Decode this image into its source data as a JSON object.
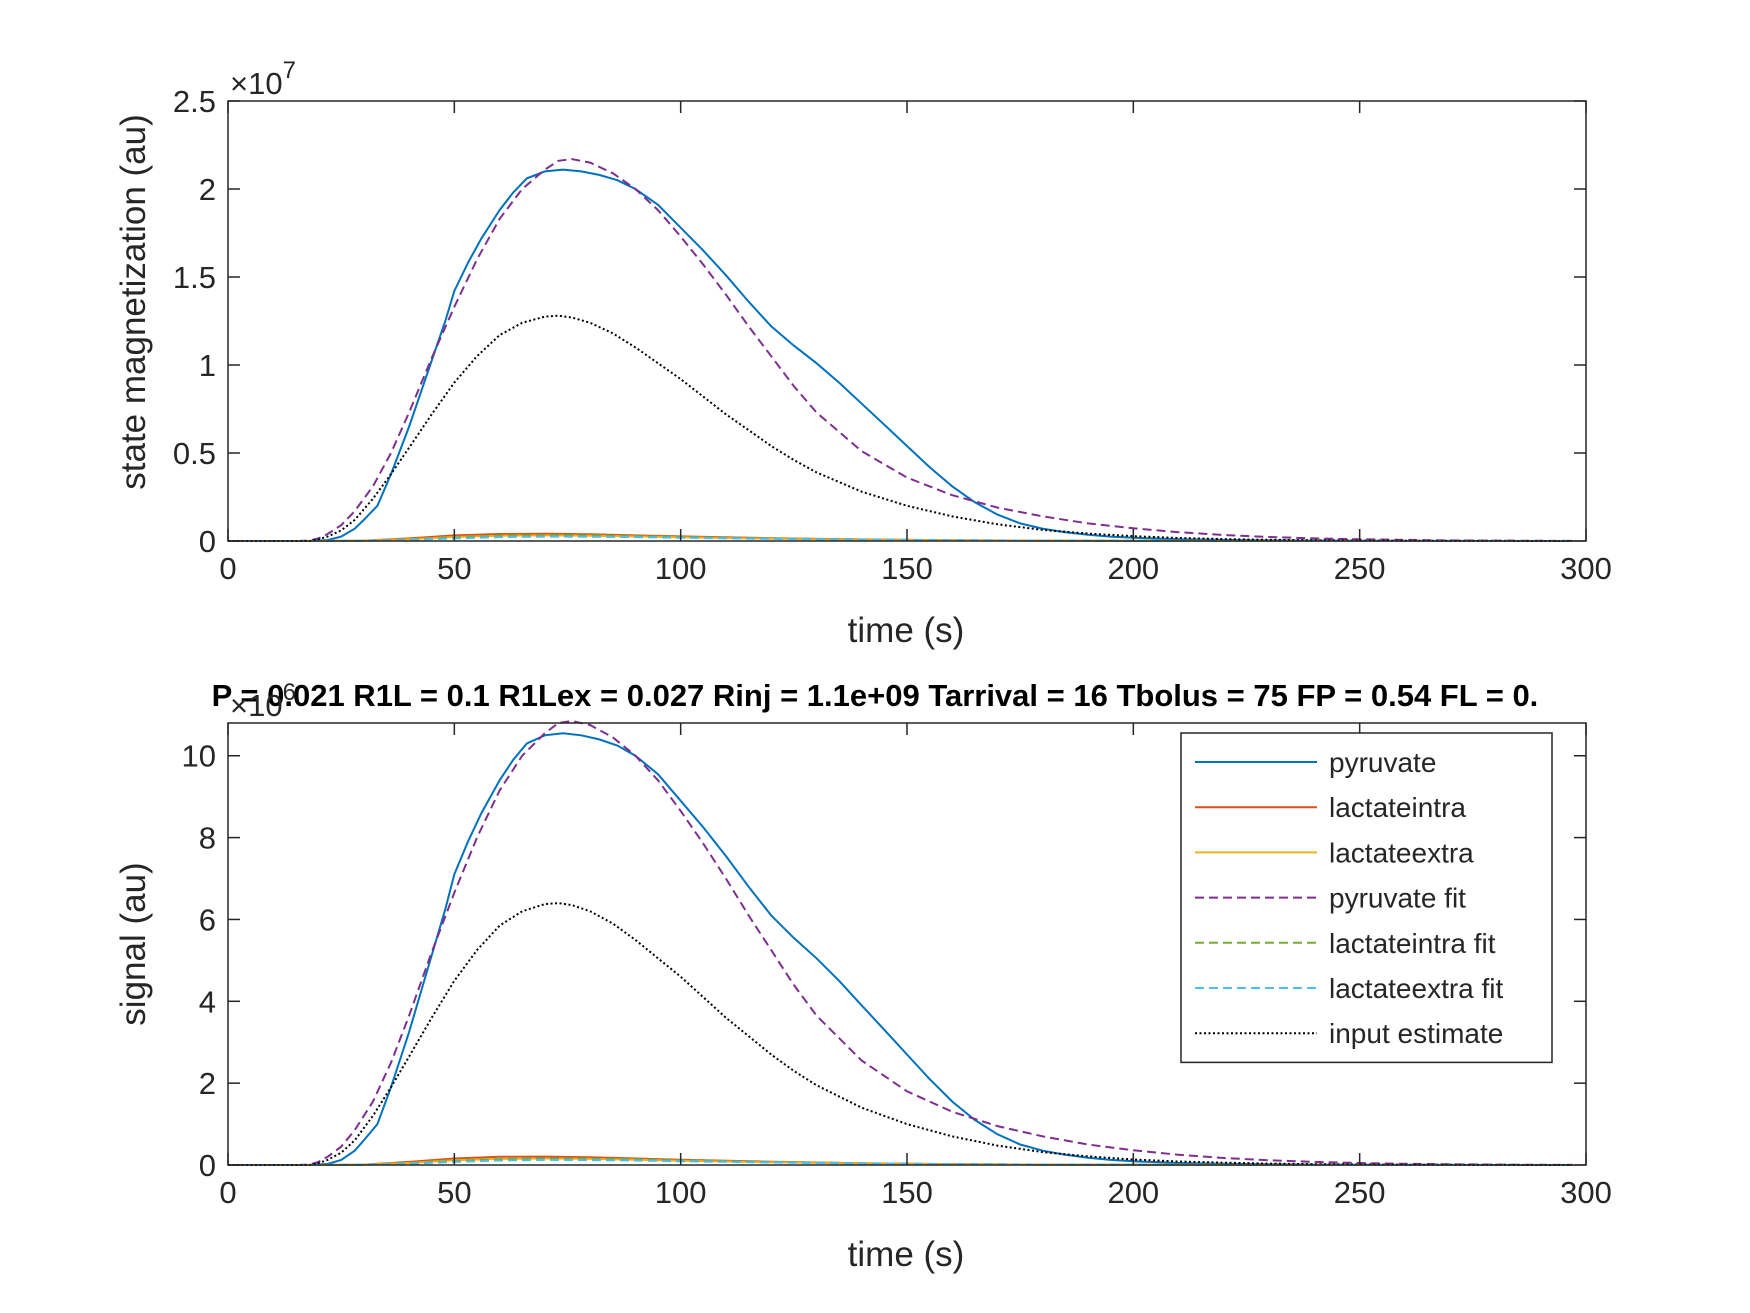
{
  "title": "P = 0.021 R1L = 0.1 R1Lex = 0.027 Rinj = 1.1e+09 Tarrival = 16 Tbolus = 75 FP = 0.54 FL = 0.",
  "chart_data": [
    {
      "type": "line",
      "xlabel": "time (s)",
      "ylabel": "state magnetization (au)",
      "xlim": [
        0,
        300
      ],
      "ylim": [
        0,
        25000000
      ],
      "xticks": [
        0,
        50,
        100,
        150,
        200,
        250,
        300
      ],
      "yticks": [
        0,
        5000000,
        10000000,
        15000000,
        20000000,
        25000000
      ],
      "ytick_labels": [
        "0",
        "0.5",
        "1",
        "1.5",
        "2",
        "2.5"
      ],
      "exponent_label": "×10",
      "exponent": "7",
      "grid": false,
      "series": [
        {
          "key": "pyruvate",
          "color": "#0072BD",
          "style": "solid",
          "x": [
            0,
            18,
            22,
            25,
            28,
            30,
            33,
            36,
            40,
            44,
            48,
            50,
            53,
            56,
            60,
            63,
            66,
            70,
            74,
            78,
            82,
            86,
            90,
            95,
            100,
            105,
            110,
            115,
            120,
            125,
            130,
            135,
            140,
            145,
            150,
            155,
            160,
            165,
            170,
            175,
            180,
            185,
            190,
            195,
            200,
            210,
            220,
            230,
            240,
            250,
            260,
            270,
            280,
            290,
            297
          ],
          "y": [
            0,
            0,
            50000,
            250000,
            700000,
            1200000,
            2000000,
            3800000,
            6500000,
            9500000,
            12500000,
            14200000,
            15800000,
            17200000,
            18800000,
            19800000,
            20600000,
            21000000,
            21100000,
            21000000,
            20800000,
            20500000,
            20000000,
            19100000,
            17800000,
            16500000,
            15100000,
            13600000,
            12200000,
            11100000,
            10100000,
            9000000,
            7800000,
            6600000,
            5400000,
            4200000,
            3100000,
            2200000,
            1500000,
            1000000,
            700000,
            500000,
            350000,
            250000,
            180000,
            100000,
            60000,
            35000,
            20000,
            12000,
            7000,
            4000,
            2000,
            1000,
            500
          ]
        },
        {
          "key": "lactateintra",
          "color": "#D95319",
          "style": "solid",
          "x": [
            0,
            20,
            30,
            40,
            50,
            60,
            70,
            80,
            90,
            100,
            120,
            140,
            160,
            180,
            200,
            220,
            250,
            297
          ],
          "y": [
            0,
            0,
            20000,
            150000,
            320000,
            400000,
            410000,
            380000,
            320000,
            260000,
            160000,
            90000,
            45000,
            20000,
            8000,
            3000,
            1000,
            0
          ]
        },
        {
          "key": "lactateextra",
          "color": "#EDB120",
          "style": "solid",
          "x": [
            0,
            20,
            30,
            40,
            50,
            60,
            70,
            80,
            90,
            100,
            120,
            140,
            160,
            180,
            200,
            220,
            250,
            297
          ],
          "y": [
            0,
            0,
            15000,
            100000,
            230000,
            300000,
            320000,
            300000,
            260000,
            210000,
            130000,
            75000,
            38000,
            17000,
            7000,
            2500,
            800,
            0
          ]
        },
        {
          "key": "pyruvate_fit",
          "color": "#7E2F8E",
          "style": "dashed",
          "x": [
            0,
            15,
            18,
            20,
            22,
            25,
            28,
            32,
            36,
            40,
            45,
            50,
            55,
            60,
            65,
            70,
            73,
            76,
            80,
            85,
            90,
            95,
            100,
            105,
            110,
            115,
            120,
            125,
            130,
            140,
            150,
            160,
            170,
            180,
            190,
            200,
            210,
            220,
            230,
            240,
            250,
            260,
            270,
            280,
            290,
            297
          ],
          "y": [
            0,
            0,
            20000,
            150000,
            400000,
            900000,
            1700000,
            3100000,
            5000000,
            7300000,
            10400000,
            13300000,
            16000000,
            18300000,
            20000000,
            21100000,
            21600000,
            21700000,
            21500000,
            20900000,
            20000000,
            18800000,
            17300000,
            15700000,
            14000000,
            12200000,
            10500000,
            8800000,
            7300000,
            5100000,
            3600000,
            2600000,
            1900000,
            1400000,
            1000000,
            720000,
            500000,
            340000,
            230000,
            150000,
            100000,
            60000,
            35000,
            20000,
            10000,
            5000
          ]
        },
        {
          "key": "lactateintra_fit",
          "color": "#77AC30",
          "style": "dashed",
          "x": [
            0,
            20,
            30,
            40,
            50,
            60,
            70,
            80,
            90,
            100,
            120,
            140,
            160,
            180,
            200,
            220,
            250,
            297
          ],
          "y": [
            0,
            0,
            10000,
            80000,
            200000,
            290000,
            320000,
            310000,
            280000,
            230000,
            150000,
            85000,
            45000,
            22000,
            10000,
            4000,
            1000,
            0
          ]
        },
        {
          "key": "lactateextra_fit",
          "color": "#4DBEEE",
          "style": "dashed",
          "x": [
            0,
            20,
            30,
            40,
            50,
            60,
            70,
            80,
            90,
            100,
            120,
            140,
            160,
            180,
            200,
            220,
            250,
            297
          ],
          "y": [
            0,
            0,
            8000,
            60000,
            150000,
            220000,
            250000,
            240000,
            220000,
            180000,
            120000,
            70000,
            38000,
            18000,
            8000,
            3000,
            800,
            0
          ]
        },
        {
          "key": "input_estimate",
          "color": "#000000",
          "style": "dotted",
          "x": [
            0,
            18,
            20,
            22,
            25,
            28,
            32,
            36,
            40,
            45,
            50,
            55,
            60,
            65,
            70,
            73,
            76,
            80,
            85,
            90,
            95,
            100,
            105,
            110,
            115,
            120,
            125,
            130,
            140,
            150,
            160,
            170,
            180,
            190,
            200,
            210,
            220,
            230,
            240,
            250,
            260,
            270,
            280,
            290,
            297
          ],
          "y": [
            0,
            0,
            100000,
            250000,
            600000,
            1200000,
            2400000,
            3800000,
            5300000,
            7200000,
            9000000,
            10500000,
            11700000,
            12400000,
            12750000,
            12800000,
            12700000,
            12400000,
            11800000,
            11000000,
            10100000,
            9200000,
            8200000,
            7200000,
            6300000,
            5400000,
            4600000,
            3900000,
            2800000,
            2000000,
            1400000,
            950000,
            630000,
            420000,
            270000,
            170000,
            110000,
            70000,
            40000,
            25000,
            15000,
            8000,
            4000,
            2000,
            1000
          ]
        }
      ]
    },
    {
      "type": "line",
      "xlabel": "time (s)",
      "ylabel": "signal (au)",
      "xlim": [
        0,
        300
      ],
      "ylim": [
        0,
        10800000
      ],
      "xticks": [
        0,
        50,
        100,
        150,
        200,
        250,
        300
      ],
      "yticks": [
        0,
        2000000,
        4000000,
        6000000,
        8000000,
        10000000
      ],
      "ytick_labels": [
        "0",
        "2",
        "4",
        "6",
        "8",
        "10"
      ],
      "exponent_label": "×10",
      "exponent": "6",
      "grid": false,
      "legend_position": "top-right",
      "series": [
        {
          "key": "pyruvate",
          "name": "pyruvate",
          "color": "#0072BD",
          "style": "solid",
          "x": [
            0,
            18,
            22,
            25,
            28,
            30,
            33,
            36,
            40,
            44,
            48,
            50,
            53,
            56,
            60,
            63,
            66,
            70,
            74,
            78,
            82,
            86,
            90,
            95,
            100,
            105,
            110,
            115,
            120,
            125,
            130,
            135,
            140,
            145,
            150,
            155,
            160,
            165,
            170,
            175,
            180,
            185,
            190,
            195,
            200,
            210,
            220,
            230,
            240,
            250,
            260,
            270,
            280,
            290,
            297
          ],
          "y": [
            0,
            0,
            25000,
            125000,
            350000,
            600000,
            1000000,
            1900000,
            3250000,
            4750000,
            6250000,
            7100000,
            7900000,
            8600000,
            9400000,
            9900000,
            10300000,
            10500000,
            10550000,
            10500000,
            10400000,
            10250000,
            10000000,
            9550000,
            8900000,
            8250000,
            7550000,
            6800000,
            6100000,
            5550000,
            5050000,
            4500000,
            3900000,
            3300000,
            2700000,
            2100000,
            1550000,
            1100000,
            750000,
            500000,
            350000,
            250000,
            175000,
            125000,
            90000,
            50000,
            30000,
            17500,
            10000,
            6000,
            3500,
            2000,
            1000,
            500,
            250
          ]
        },
        {
          "key": "lactateintra",
          "name": "lactateintra",
          "color": "#D95319",
          "style": "solid",
          "x": [
            0,
            20,
            30,
            40,
            50,
            60,
            70,
            80,
            90,
            100,
            120,
            140,
            160,
            180,
            200,
            220,
            250,
            297
          ],
          "y": [
            0,
            0,
            10000,
            75000,
            160000,
            200000,
            205000,
            190000,
            160000,
            130000,
            80000,
            45000,
            22500,
            10000,
            4000,
            1500,
            500,
            0
          ]
        },
        {
          "key": "lactateextra",
          "name": "lactateextra",
          "color": "#EDB120",
          "style": "solid",
          "x": [
            0,
            20,
            30,
            40,
            50,
            60,
            70,
            80,
            90,
            100,
            120,
            140,
            160,
            180,
            200,
            220,
            250,
            297
          ],
          "y": [
            0,
            0,
            7500,
            50000,
            115000,
            150000,
            160000,
            150000,
            130000,
            105000,
            65000,
            37500,
            19000,
            8500,
            3500,
            1250,
            400,
            0
          ]
        },
        {
          "key": "pyruvate_fit",
          "name": "pyruvate fit",
          "color": "#7E2F8E",
          "style": "dashed",
          "x": [
            0,
            15,
            18,
            20,
            22,
            25,
            28,
            32,
            36,
            40,
            45,
            50,
            55,
            60,
            65,
            70,
            73,
            76,
            80,
            85,
            90,
            95,
            100,
            105,
            110,
            115,
            120,
            125,
            130,
            140,
            150,
            160,
            170,
            180,
            190,
            200,
            210,
            220,
            230,
            240,
            250,
            260,
            270,
            280,
            290,
            297
          ],
          "y": [
            0,
            0,
            10000,
            75000,
            200000,
            450000,
            850000,
            1550000,
            2500000,
            3650000,
            5200000,
            6650000,
            8000000,
            9150000,
            10000000,
            10550000,
            10800000,
            10850000,
            10750000,
            10450000,
            10000000,
            9400000,
            8650000,
            7850000,
            7000000,
            6100000,
            5250000,
            4400000,
            3650000,
            2550000,
            1800000,
            1300000,
            950000,
            700000,
            500000,
            360000,
            250000,
            170000,
            115000,
            75000,
            50000,
            30000,
            17500,
            10000,
            5000,
            2500
          ]
        },
        {
          "key": "lactateintra_fit",
          "name": "lactateintra fit",
          "color": "#77AC30",
          "style": "dashed",
          "x": [
            0,
            20,
            30,
            40,
            50,
            60,
            70,
            80,
            90,
            100,
            120,
            140,
            160,
            180,
            200,
            220,
            250,
            297
          ],
          "y": [
            0,
            0,
            5000,
            40000,
            100000,
            145000,
            160000,
            155000,
            140000,
            115000,
            75000,
            42500,
            22500,
            11000,
            5000,
            2000,
            500,
            0
          ]
        },
        {
          "key": "lactateextra_fit",
          "name": "lactateextra fit",
          "color": "#4DBEEE",
          "style": "dashed",
          "x": [
            0,
            20,
            30,
            40,
            50,
            60,
            70,
            80,
            90,
            100,
            120,
            140,
            160,
            180,
            200,
            220,
            250,
            297
          ],
          "y": [
            0,
            0,
            4000,
            30000,
            75000,
            110000,
            125000,
            120000,
            110000,
            90000,
            60000,
            35000,
            19000,
            9000,
            4000,
            1500,
            400,
            0
          ]
        },
        {
          "key": "input_estimate",
          "name": "input estimate",
          "color": "#000000",
          "style": "dotted",
          "x": [
            0,
            18,
            20,
            22,
            25,
            28,
            32,
            36,
            40,
            45,
            50,
            55,
            60,
            65,
            70,
            73,
            76,
            80,
            85,
            90,
            95,
            100,
            105,
            110,
            115,
            120,
            125,
            130,
            140,
            150,
            160,
            170,
            180,
            190,
            200,
            210,
            220,
            230,
            240,
            250,
            260,
            270,
            280,
            290,
            297
          ],
          "y": [
            0,
            0,
            50000,
            125000,
            300000,
            600000,
            1200000,
            1900000,
            2650000,
            3600000,
            4500000,
            5250000,
            5850000,
            6200000,
            6375000,
            6400000,
            6350000,
            6200000,
            5900000,
            5500000,
            5050000,
            4600000,
            4100000,
            3600000,
            3150000,
            2700000,
            2300000,
            1950000,
            1400000,
            1000000,
            700000,
            475000,
            315000,
            210000,
            135000,
            85000,
            55000,
            35000,
            20000,
            12500,
            7500,
            4000,
            2000,
            1000,
            500
          ]
        }
      ]
    }
  ]
}
